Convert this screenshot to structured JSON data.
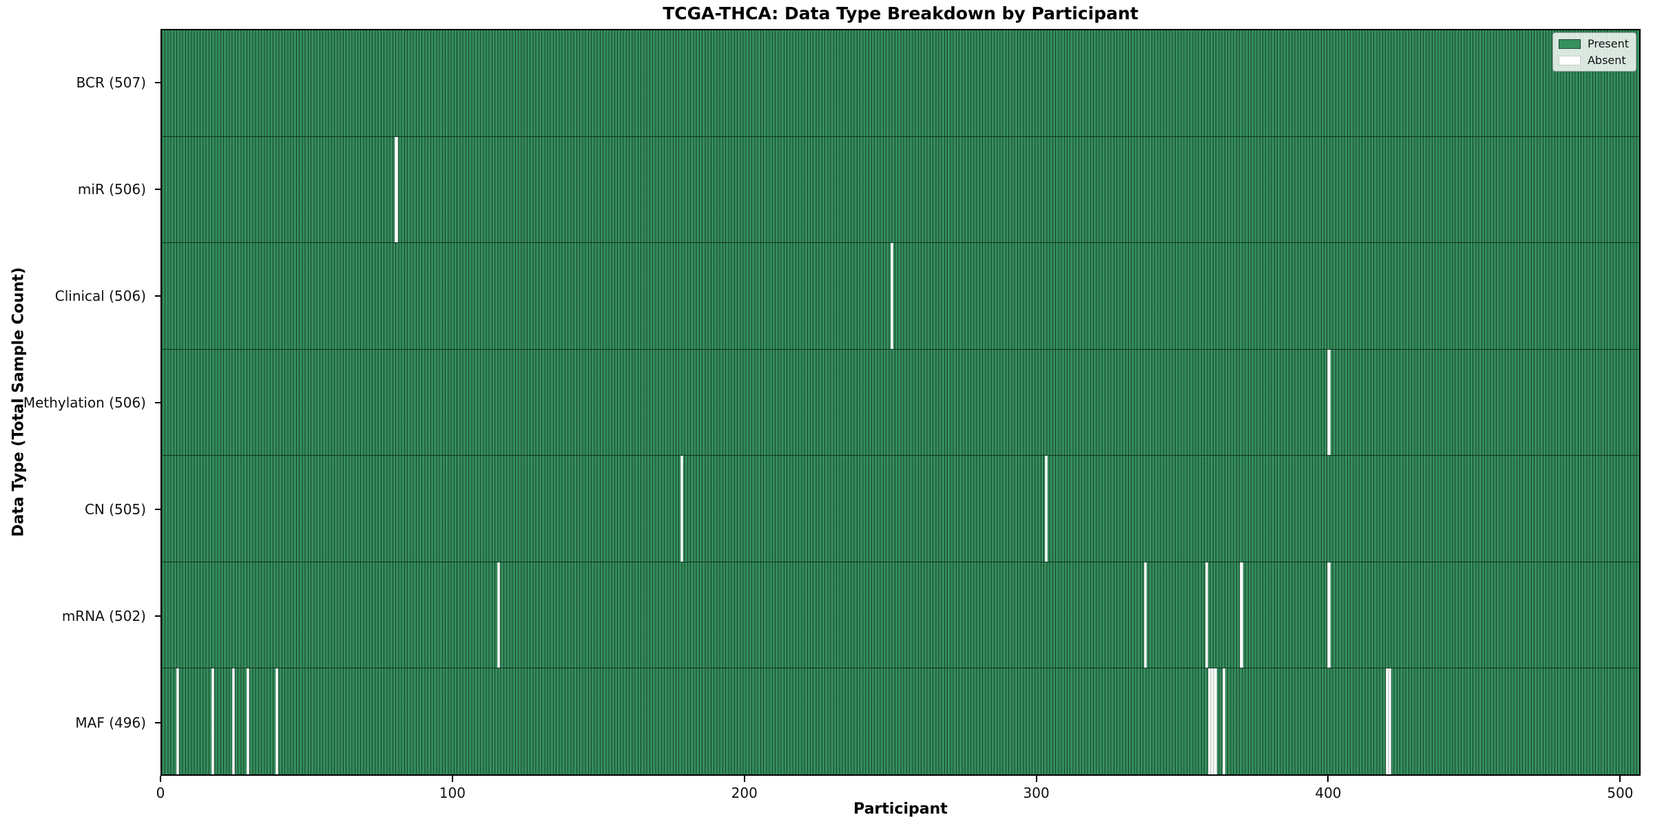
{
  "chart_data": {
    "type": "heatmap",
    "title": "TCGA-THCA: Data Type Breakdown by Participant",
    "xlabel": "Participant",
    "ylabel": "Data Type (Total Sample Count)",
    "n_participants": 507,
    "xlim": [
      0,
      507
    ],
    "x_ticks": [
      0,
      100,
      200,
      300,
      400,
      500
    ],
    "grid": false,
    "colors": {
      "present": "#37915f",
      "bar_edge": "#1c4a31",
      "absent": "#ffffff",
      "spine": "#000000"
    },
    "legend": {
      "position": "upper right",
      "items": [
        {
          "label": "Present",
          "color": "#37915f"
        },
        {
          "label": "Absent",
          "color": "#ffffff"
        }
      ]
    },
    "rows": [
      {
        "label": "BCR (507)",
        "data_type": "BCR",
        "total_samples": 507,
        "absent_participants": []
      },
      {
        "label": "miR (506)",
        "data_type": "miR",
        "total_samples": 506,
        "absent_participants": [
          80
        ]
      },
      {
        "label": "Clinical (506)",
        "data_type": "Clinical",
        "total_samples": 506,
        "absent_participants": [
          250
        ]
      },
      {
        "label": "Methylation (506)",
        "data_type": "Methylation",
        "total_samples": 506,
        "absent_participants": [
          400
        ]
      },
      {
        "label": "CN (505)",
        "data_type": "CN",
        "total_samples": 505,
        "absent_participants": [
          178,
          303
        ]
      },
      {
        "label": "mRNA (502)",
        "data_type": "mRNA",
        "total_samples": 502,
        "absent_participants": [
          115,
          337,
          358,
          370,
          400
        ]
      },
      {
        "label": "MAF (496)",
        "data_type": "MAF",
        "total_samples": 496,
        "absent_participants": [
          5,
          17,
          24,
          29,
          39,
          359,
          360,
          361,
          364,
          420,
          421
        ]
      }
    ]
  },
  "layout_note": "presence matrix, 7 rows, green=present white=absent"
}
